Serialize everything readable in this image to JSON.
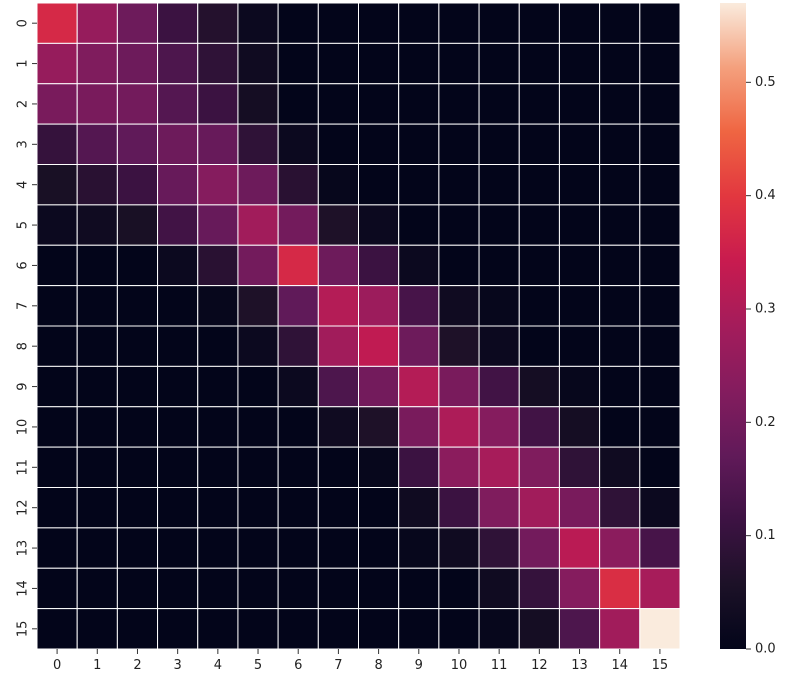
{
  "chart_data": {
    "type": "heatmap",
    "x_labels": [
      "0",
      "1",
      "2",
      "3",
      "4",
      "5",
      "6",
      "7",
      "8",
      "9",
      "10",
      "11",
      "12",
      "13",
      "14",
      "15"
    ],
    "y_labels": [
      "0",
      "1",
      "2",
      "3",
      "4",
      "5",
      "6",
      "7",
      "8",
      "9",
      "10",
      "11",
      "12",
      "13",
      "14",
      "15"
    ],
    "values": [
      [
        0.37,
        0.26,
        0.19,
        0.11,
        0.07,
        0.02,
        0,
        0,
        0,
        0,
        0,
        0,
        0,
        0,
        0,
        0
      ],
      [
        0.26,
        0.22,
        0.19,
        0.14,
        0.09,
        0.03,
        0,
        0,
        0,
        0,
        0,
        0,
        0,
        0,
        0,
        0
      ],
      [
        0.21,
        0.21,
        0.2,
        0.15,
        0.11,
        0.04,
        0,
        0,
        0,
        0,
        0,
        0,
        0,
        0,
        0,
        0
      ],
      [
        0.1,
        0.15,
        0.17,
        0.19,
        0.18,
        0.09,
        0.02,
        0,
        0,
        0,
        0,
        0,
        0,
        0,
        0,
        0
      ],
      [
        0.05,
        0.08,
        0.11,
        0.18,
        0.23,
        0.19,
        0.08,
        0.01,
        0,
        0,
        0,
        0,
        0,
        0,
        0,
        0
      ],
      [
        0.02,
        0.03,
        0.05,
        0.12,
        0.18,
        0.28,
        0.2,
        0.06,
        0.02,
        0,
        0,
        0,
        0,
        0,
        0,
        0
      ],
      [
        0,
        0,
        0,
        0.02,
        0.08,
        0.2,
        0.37,
        0.19,
        0.11,
        0.02,
        0,
        0,
        0,
        0,
        0,
        0
      ],
      [
        0,
        0,
        0,
        0,
        0.01,
        0.06,
        0.17,
        0.31,
        0.27,
        0.13,
        0.03,
        0.01,
        0,
        0,
        0,
        0
      ],
      [
        0,
        0,
        0,
        0,
        0,
        0.02,
        0.09,
        0.28,
        0.33,
        0.19,
        0.06,
        0.02,
        0,
        0,
        0,
        0
      ],
      [
        0,
        0,
        0,
        0,
        0,
        0,
        0.02,
        0.14,
        0.2,
        0.31,
        0.21,
        0.12,
        0.04,
        0.01,
        0,
        0
      ],
      [
        0,
        0,
        0,
        0,
        0,
        0,
        0,
        0.03,
        0.06,
        0.21,
        0.3,
        0.23,
        0.12,
        0.04,
        0,
        0
      ],
      [
        0,
        0,
        0,
        0,
        0,
        0,
        0,
        0,
        0.01,
        0.11,
        0.24,
        0.29,
        0.22,
        0.09,
        0.03,
        0
      ],
      [
        0,
        0,
        0,
        0,
        0,
        0,
        0,
        0,
        0,
        0.03,
        0.11,
        0.22,
        0.28,
        0.21,
        0.09,
        0.02
      ],
      [
        0,
        0,
        0,
        0,
        0,
        0,
        0,
        0,
        0,
        0.01,
        0.03,
        0.09,
        0.2,
        0.32,
        0.24,
        0.13
      ],
      [
        0,
        0,
        0,
        0,
        0,
        0,
        0,
        0,
        0,
        0,
        0,
        0.03,
        0.1,
        0.23,
        0.38,
        0.29
      ],
      [
        0,
        0,
        0,
        0,
        0,
        0,
        0,
        0,
        0,
        0,
        0,
        0.01,
        0.04,
        0.14,
        0.28,
        0.57
      ]
    ],
    "vmin": 0,
    "vmax": 0.57,
    "colorbar": {
      "ticks": [
        0.0,
        0.1,
        0.2,
        0.3,
        0.4,
        0.5
      ],
      "tick_labels": [
        "0.0",
        "0.1",
        "0.2",
        "0.3",
        "0.4",
        "0.5"
      ]
    },
    "colormap": "rocket",
    "cell_border_color": "#ffffff",
    "title": "",
    "xlabel": "",
    "ylabel": ""
  }
}
